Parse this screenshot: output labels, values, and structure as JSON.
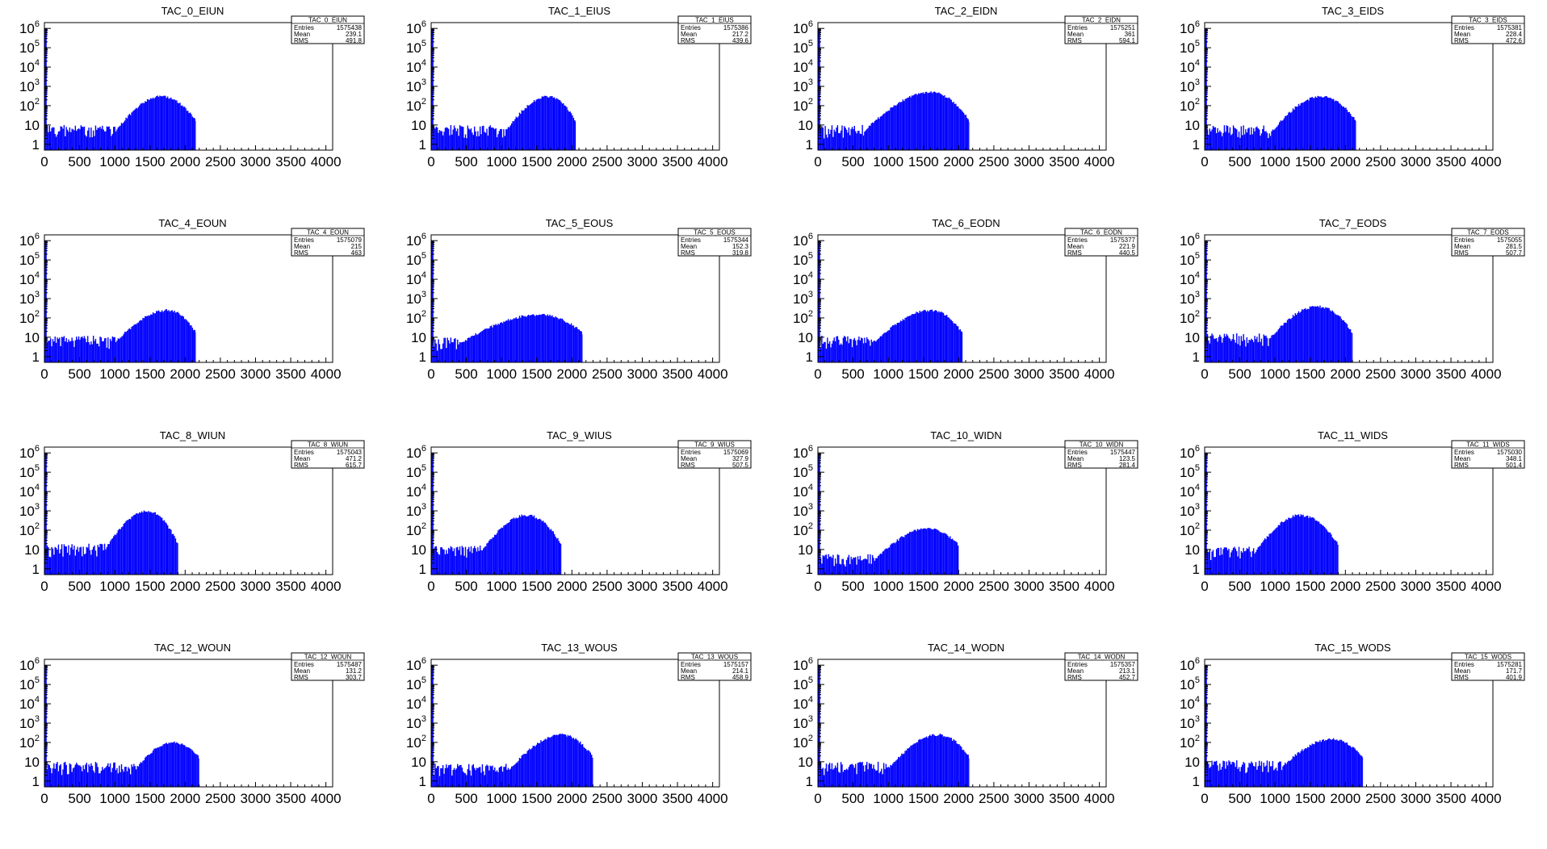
{
  "figure": {
    "fill_color": "#0000ff",
    "axis_color": "#000000",
    "background": "#ffffff"
  },
  "chart_data": [
    {
      "type": "bar",
      "title": "TAC_0_EIUN",
      "stats": {
        "name": "TAC_0_EIUN",
        "entries": "1575438",
        "mean": "239.1",
        "rms": "491.8"
      },
      "xlim": [
        0,
        4096
      ],
      "ylim": [
        0.5,
        2000000
      ],
      "log_y": true,
      "xticks": [
        "0",
        "500",
        "1000",
        "1500",
        "2000",
        "2500",
        "3000",
        "3500",
        "4000"
      ],
      "yticks": [
        "1",
        "10",
        "10^2",
        "10^3",
        "10^4",
        "10^5",
        "10^6"
      ],
      "spike": {
        "x": [
          0,
          20
        ],
        "y": 1000000
      },
      "noise": {
        "x": [
          20,
          900
        ],
        "y": 5
      },
      "peak": {
        "x": 1650,
        "y": 300
      },
      "rise": [
        1000,
        1650
      ],
      "cutoff": 2150
    },
    {
      "type": "bar",
      "title": "TAC_1_EIUS",
      "stats": {
        "name": "TAC_1_EIUS",
        "entries": "1575386",
        "mean": "217.2",
        "rms": "439.6"
      },
      "xlim": [
        0,
        4096
      ],
      "ylim": [
        0.5,
        2000000
      ],
      "log_y": true,
      "xticks": [
        "0",
        "500",
        "1000",
        "1500",
        "2000",
        "2500",
        "3000",
        "3500",
        "4000"
      ],
      "yticks": [
        "1",
        "10",
        "10^2",
        "10^3",
        "10^4",
        "10^5",
        "10^6"
      ],
      "spike": {
        "x": [
          0,
          20
        ],
        "y": 1000000
      },
      "noise": {
        "x": [
          20,
          900
        ],
        "y": 5
      },
      "peak": {
        "x": 1650,
        "y": 300
      },
      "rise": [
        1050,
        1650
      ],
      "cutoff": 2050
    },
    {
      "type": "bar",
      "title": "TAC_2_EIDN",
      "stats": {
        "name": "TAC_2_EIDN",
        "entries": "1575251",
        "mean": "361",
        "rms": "594.1"
      },
      "xlim": [
        0,
        4096
      ],
      "ylim": [
        0.5,
        2000000
      ],
      "log_y": true,
      "xticks": [
        "0",
        "500",
        "1000",
        "1500",
        "2000",
        "2500",
        "3000",
        "3500",
        "4000"
      ],
      "yticks": [
        "1",
        "10",
        "10^2",
        "10^3",
        "10^4",
        "10^5",
        "10^6"
      ],
      "spike": {
        "x": [
          0,
          20
        ],
        "y": 1000000
      },
      "noise": {
        "x": [
          20,
          650
        ],
        "y": 5
      },
      "peak": {
        "x": 1600,
        "y": 500
      },
      "rise": [
        650,
        1600
      ],
      "cutoff": 2150
    },
    {
      "type": "bar",
      "title": "TAC_3_EIDS",
      "stats": {
        "name": "TAC_3_EIDS",
        "entries": "1575381",
        "mean": "228.4",
        "rms": "472.6"
      },
      "xlim": [
        0,
        4096
      ],
      "ylim": [
        0.5,
        2000000
      ],
      "log_y": true,
      "xticks": [
        "0",
        "500",
        "1000",
        "1500",
        "2000",
        "2500",
        "3000",
        "3500",
        "4000"
      ],
      "yticks": [
        "1",
        "10",
        "10^2",
        "10^3",
        "10^4",
        "10^5",
        "10^6"
      ],
      "spike": {
        "x": [
          0,
          20
        ],
        "y": 1000000
      },
      "noise": {
        "x": [
          20,
          950
        ],
        "y": 5
      },
      "peak": {
        "x": 1650,
        "y": 300
      },
      "rise": [
        950,
        1650
      ],
      "cutoff": 2150
    },
    {
      "type": "bar",
      "title": "TAC_4_EOUN",
      "stats": {
        "name": "TAC_4_EOUN",
        "entries": "1575079",
        "mean": "215",
        "rms": "463"
      },
      "xlim": [
        0,
        4096
      ],
      "ylim": [
        0.5,
        2000000
      ],
      "log_y": true,
      "xticks": [
        "0",
        "500",
        "1000",
        "1500",
        "2000",
        "2500",
        "3000",
        "3500",
        "4000"
      ],
      "yticks": [
        "1",
        "10",
        "10^2",
        "10^3",
        "10^4",
        "10^5",
        "10^6"
      ],
      "spike": {
        "x": [
          0,
          20
        ],
        "y": 1000000
      },
      "noise": {
        "x": [
          20,
          1000
        ],
        "y": 6
      },
      "peak": {
        "x": 1750,
        "y": 250
      },
      "rise": [
        1000,
        1750
      ],
      "cutoff": 2150
    },
    {
      "type": "bar",
      "title": "TAC_5_EOUS",
      "stats": {
        "name": "TAC_5_EOUS",
        "entries": "1575344",
        "mean": "152.3",
        "rms": "319.8"
      },
      "xlim": [
        0,
        4096
      ],
      "ylim": [
        0.5,
        2000000
      ],
      "log_y": true,
      "xticks": [
        "0",
        "500",
        "1000",
        "1500",
        "2000",
        "2500",
        "3000",
        "3500",
        "4000"
      ],
      "yticks": [
        "1",
        "10",
        "10^2",
        "10^3",
        "10^4",
        "10^5",
        "10^6"
      ],
      "spike": {
        "x": [
          0,
          20
        ],
        "y": 1000000
      },
      "noise": {
        "x": [
          20,
          400
        ],
        "y": 5
      },
      "peak": {
        "x": 1550,
        "y": 150
      },
      "rise": [
        400,
        1550
      ],
      "cutoff": 2150
    },
    {
      "type": "bar",
      "title": "TAC_6_EODN",
      "stats": {
        "name": "TAC_6_EODN",
        "entries": "1575377",
        "mean": "221.9",
        "rms": "440.5"
      },
      "xlim": [
        0,
        4096
      ],
      "ylim": [
        0.5,
        2000000
      ],
      "log_y": true,
      "xticks": [
        "0",
        "500",
        "1000",
        "1500",
        "2000",
        "2500",
        "3000",
        "3500",
        "4000"
      ],
      "yticks": [
        "1",
        "10",
        "10^2",
        "10^3",
        "10^4",
        "10^5",
        "10^6"
      ],
      "spike": {
        "x": [
          0,
          20
        ],
        "y": 1000000
      },
      "noise": {
        "x": [
          20,
          800
        ],
        "y": 6
      },
      "peak": {
        "x": 1600,
        "y": 250
      },
      "rise": [
        800,
        1600
      ],
      "cutoff": 2050
    },
    {
      "type": "bar",
      "title": "TAC_7_EODS",
      "stats": {
        "name": "TAC_7_EODS",
        "entries": "1575055",
        "mean": "281.5",
        "rms": "507.7"
      },
      "xlim": [
        0,
        4096
      ],
      "ylim": [
        0.5,
        2000000
      ],
      "log_y": true,
      "xticks": [
        "0",
        "500",
        "1000",
        "1500",
        "2000",
        "2500",
        "3000",
        "3500",
        "4000"
      ],
      "yticks": [
        "1",
        "10",
        "10^2",
        "10^3",
        "10^4",
        "10^5",
        "10^6"
      ],
      "spike": {
        "x": [
          0,
          20
        ],
        "y": 1000000
      },
      "noise": {
        "x": [
          20,
          900
        ],
        "y": 8
      },
      "peak": {
        "x": 1600,
        "y": 400
      },
      "rise": [
        900,
        1600
      ],
      "cutoff": 2100
    },
    {
      "type": "bar",
      "title": "TAC_8_WIUN",
      "stats": {
        "name": "TAC_8_WIUN",
        "entries": "1575043",
        "mean": "471.2",
        "rms": "615.7"
      },
      "xlim": [
        0,
        4096
      ],
      "ylim": [
        0.5,
        2000000
      ],
      "log_y": true,
      "xticks": [
        "0",
        "500",
        "1000",
        "1500",
        "2000",
        "2500",
        "3000",
        "3500",
        "4000"
      ],
      "yticks": [
        "1",
        "10",
        "10^2",
        "10^3",
        "10^4",
        "10^5",
        "10^6"
      ],
      "spike": {
        "x": [
          0,
          20
        ],
        "y": 1000000
      },
      "noise": {
        "x": [
          20,
          850
        ],
        "y": 10
      },
      "peak": {
        "x": 1450,
        "y": 1000
      },
      "rise": [
        850,
        1450
      ],
      "cutoff": 1900
    },
    {
      "type": "bar",
      "title": "TAC_9_WIUS",
      "stats": {
        "name": "TAC_9_WIUS",
        "entries": "1575069",
        "mean": "327.9",
        "rms": "507.5"
      },
      "xlim": [
        0,
        4096
      ],
      "ylim": [
        0.5,
        2000000
      ],
      "log_y": true,
      "xticks": [
        "0",
        "500",
        "1000",
        "1500",
        "2000",
        "2500",
        "3000",
        "3500",
        "4000"
      ],
      "yticks": [
        "1",
        "10",
        "10^2",
        "10^3",
        "10^4",
        "10^5",
        "10^6"
      ],
      "spike": {
        "x": [
          0,
          20
        ],
        "y": 1000000
      },
      "noise": {
        "x": [
          20,
          700
        ],
        "y": 8
      },
      "peak": {
        "x": 1350,
        "y": 600
      },
      "rise": [
        700,
        1350
      ],
      "cutoff": 1850
    },
    {
      "type": "bar",
      "title": "TAC_10_WIDN",
      "stats": {
        "name": "TAC_10_WIDN",
        "entries": "1575447",
        "mean": "123.5",
        "rms": "281.4"
      },
      "xlim": [
        0,
        4096
      ],
      "ylim": [
        0.5,
        2000000
      ],
      "log_y": true,
      "xticks": [
        "0",
        "500",
        "1000",
        "1500",
        "2000",
        "2500",
        "3000",
        "3500",
        "4000"
      ],
      "yticks": [
        "1",
        "10",
        "10^2",
        "10^3",
        "10^4",
        "10^5",
        "10^6"
      ],
      "spike": {
        "x": [
          0,
          20
        ],
        "y": 1000000
      },
      "noise": {
        "x": [
          20,
          800
        ],
        "y": 3
      },
      "peak": {
        "x": 1550,
        "y": 120
      },
      "rise": [
        800,
        1550
      ],
      "cutoff": 2000
    },
    {
      "type": "bar",
      "title": "TAC_11_WIDS",
      "stats": {
        "name": "TAC_11_WIDS",
        "entries": "1575030",
        "mean": "348.1",
        "rms": "501.4"
      },
      "xlim": [
        0,
        4096
      ],
      "ylim": [
        0.5,
        2000000
      ],
      "log_y": true,
      "xticks": [
        "0",
        "500",
        "1000",
        "1500",
        "2000",
        "2500",
        "3000",
        "3500",
        "4000"
      ],
      "yticks": [
        "1",
        "10",
        "10^2",
        "10^3",
        "10^4",
        "10^5",
        "10^6"
      ],
      "spike": {
        "x": [
          0,
          20
        ],
        "y": 1000000
      },
      "noise": {
        "x": [
          20,
          700
        ],
        "y": 7
      },
      "peak": {
        "x": 1350,
        "y": 600
      },
      "rise": [
        700,
        1350
      ],
      "cutoff": 1900
    },
    {
      "type": "bar",
      "title": "TAC_12_WOUN",
      "stats": {
        "name": "TAC_12_WOUN",
        "entries": "1575487",
        "mean": "131.2",
        "rms": "303.7"
      },
      "xlim": [
        0,
        4096
      ],
      "ylim": [
        0.5,
        2000000
      ],
      "log_y": true,
      "xticks": [
        "0",
        "500",
        "1000",
        "1500",
        "2000",
        "2500",
        "3000",
        "3500",
        "4000"
      ],
      "yticks": [
        "1",
        "10",
        "10^2",
        "10^3",
        "10^4",
        "10^5",
        "10^6"
      ],
      "spike": {
        "x": [
          0,
          20
        ],
        "y": 1000000
      },
      "noise": {
        "x": [
          20,
          1300
        ],
        "y": 5
      },
      "peak": {
        "x": 1800,
        "y": 100
      },
      "rise": [
        1300,
        1800
      ],
      "cutoff": 2200
    },
    {
      "type": "bar",
      "title": "TAC_13_WOUS",
      "stats": {
        "name": "TAC_13_WOUS",
        "entries": "1575157",
        "mean": "214.1",
        "rms": "458.9"
      },
      "xlim": [
        0,
        4096
      ],
      "ylim": [
        0.5,
        2000000
      ],
      "log_y": true,
      "xticks": [
        "0",
        "500",
        "1000",
        "1500",
        "2000",
        "2500",
        "3000",
        "3500",
        "4000"
      ],
      "yticks": [
        "1",
        "10",
        "10^2",
        "10^3",
        "10^4",
        "10^5",
        "10^6"
      ],
      "spike": {
        "x": [
          0,
          20
        ],
        "y": 1000000
      },
      "noise": {
        "x": [
          20,
          1100
        ],
        "y": 4
      },
      "peak": {
        "x": 1850,
        "y": 250
      },
      "rise": [
        1100,
        1850
      ],
      "cutoff": 2300
    },
    {
      "type": "bar",
      "title": "TAC_14_WODN",
      "stats": {
        "name": "TAC_14_WODN",
        "entries": "1575357",
        "mean": "213.1",
        "rms": "452.7"
      },
      "xlim": [
        0,
        4096
      ],
      "ylim": [
        0.5,
        2000000
      ],
      "log_y": true,
      "xticks": [
        "0",
        "500",
        "1000",
        "1500",
        "2000",
        "2500",
        "3000",
        "3500",
        "4000"
      ],
      "yticks": [
        "1",
        "10",
        "10^2",
        "10^3",
        "10^4",
        "10^5",
        "10^6"
      ],
      "spike": {
        "x": [
          0,
          20
        ],
        "y": 1000000
      },
      "noise": {
        "x": [
          20,
          1000
        ],
        "y": 5
      },
      "peak": {
        "x": 1700,
        "y": 250
      },
      "rise": [
        1000,
        1700
      ],
      "cutoff": 2150
    },
    {
      "type": "bar",
      "title": "TAC_15_WODS",
      "stats": {
        "name": "TAC_15_WODS",
        "entries": "1575281",
        "mean": "171.7",
        "rms": "401.9"
      },
      "xlim": [
        0,
        4096
      ],
      "ylim": [
        0.5,
        2000000
      ],
      "log_y": true,
      "xticks": [
        "0",
        "500",
        "1000",
        "1500",
        "2000",
        "2500",
        "3000",
        "3500",
        "4000"
      ],
      "yticks": [
        "1",
        "10",
        "10^2",
        "10^3",
        "10^4",
        "10^5",
        "10^6"
      ],
      "spike": {
        "x": [
          0,
          20
        ],
        "y": 1000000
      },
      "noise": {
        "x": [
          20,
          1100
        ],
        "y": 6
      },
      "peak": {
        "x": 1800,
        "y": 150
      },
      "rise": [
        1100,
        1800
      ],
      "cutoff": 2250
    }
  ],
  "stats_labels": {
    "entries": "Entries",
    "mean": "Mean",
    "rms": "RMS"
  }
}
